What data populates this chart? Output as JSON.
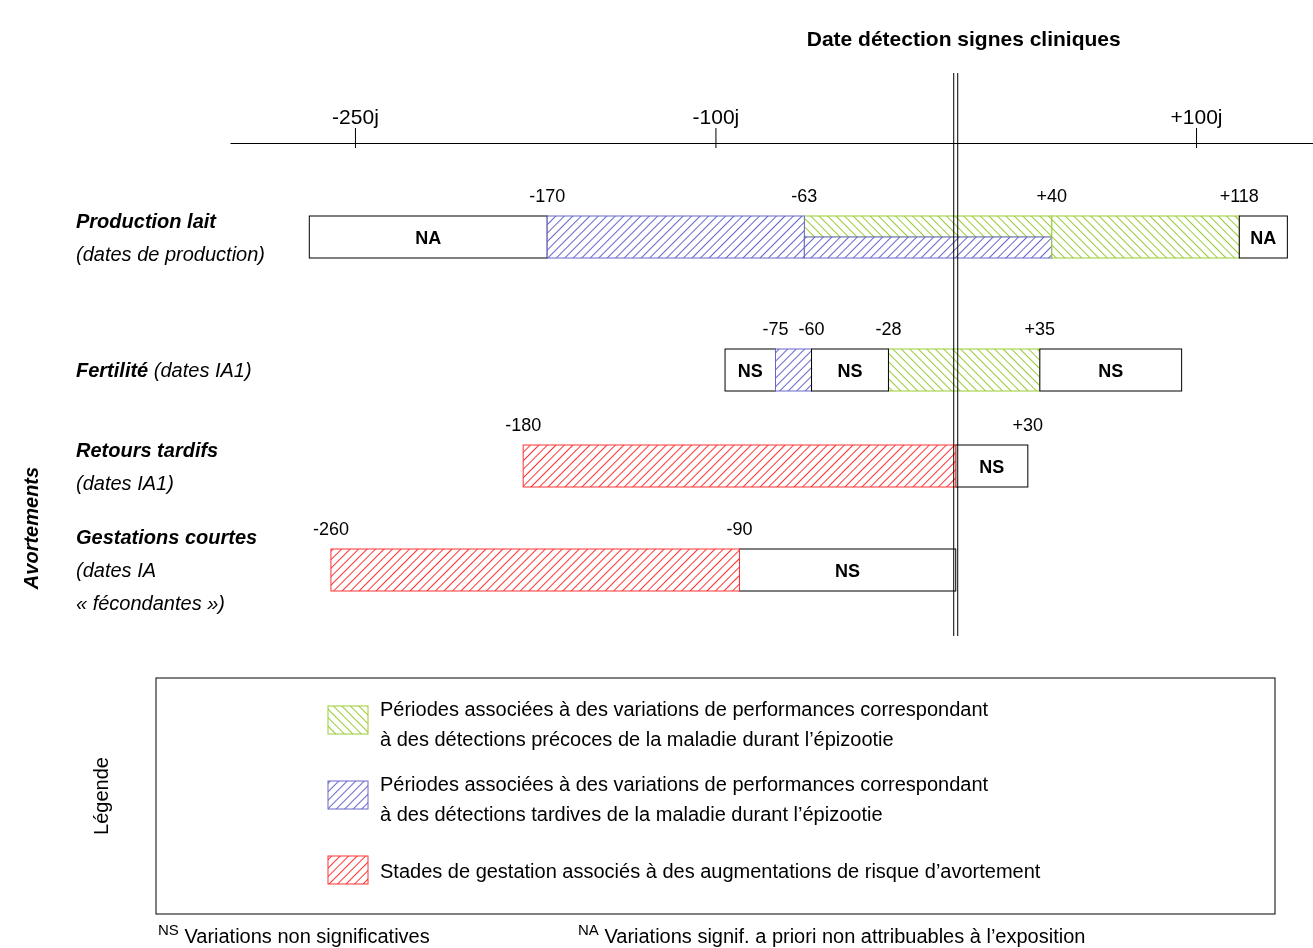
{
  "chart_data": {
    "type": "bar",
    "orientation": "horizontal",
    "categories": [
      "Production lait (dates de production)",
      "Fertilité (dates IA1)",
      "Retours tardifs (dates IA1)",
      "Gestations courtes (dates IA « fécondantes »)"
    ],
    "xlim": [
      -302,
      152
    ],
    "xticks": [
      {
        "value": -250,
        "label": "-250j"
      },
      {
        "value": -100,
        "label": "-100j"
      },
      {
        "value": 100,
        "label": "+100j"
      }
    ],
    "series": [
      {
        "color": "#ffffff",
        "base": [
          -269,
          -96,
          null,
          null
        ],
        "values": [
          99,
          21,
          null,
          null
        ],
        "value_labels": [
          "NA",
          "NS",
          null,
          null
        ]
      },
      {
        "name": "Périodes associées à des variations de performances correspondant à des détections précoces de la maladie durant l’épizootie",
        "color": "#99cc33",
        "base": [
          -63,
          -28,
          null,
          null
        ],
        "values": [
          103,
          63,
          null,
          null
        ]
      },
      {
        "name": "Périodes associées à des variations de performances correspondant à des détections tardives de la maladie durant l’épizootie",
        "color": "#6666cc",
        "base": [
          -170,
          -75,
          null,
          null
        ],
        "values": [
          107,
          15,
          null,
          null
        ]
      },
      {
        "color": "#6666cc",
        "base": [
          -63,
          null,
          null,
          null
        ],
        "values": [
          103,
          null,
          null,
          null
        ]
      },
      {
        "color": "#ffffff",
        "base": [
          null,
          -60,
          null,
          null
        ],
        "values": [
          null,
          32,
          null,
          null
        ],
        "value_labels": [
          null,
          "NS",
          null,
          null
        ]
      },
      {
        "color": "#99cc33",
        "base": [
          40,
          null,
          null,
          null
        ],
        "values": [
          78,
          null,
          null,
          null
        ]
      },
      {
        "color": "#ffffff",
        "base": [
          118,
          35,
          0,
          -90
        ],
        "values": [
          20,
          59,
          30,
          90
        ],
        "value_labels": [
          "NA",
          "NS",
          "NS",
          "NS"
        ]
      },
      {
        "name": "Stades de gestation associés à des augmentations de risque d’avortement",
        "color": "#ff3333",
        "base": [
          null,
          null,
          -180,
          -260
        ],
        "values": [
          null,
          null,
          180,
          170
        ]
      }
    ],
    "ref_lines": [
      {
        "axis": "x",
        "value": 0,
        "label": "Date détection signes cliniques"
      }
    ],
    "legend": "bottom",
    "legend_title": "Légende",
    "annotations": [
      "Avortements",
      "$^{NS}$ Variations non significatives",
      "$^{NA}$ Variations signif. a priori non attribuables à l’exposition",
      {
        "text": "-170",
        "x": -170,
        "y": "Production lait (dates de production)"
      },
      {
        "text": "-63",
        "x": -63,
        "y": "Production lait (dates de production)"
      },
      {
        "text": "+40",
        "x": 40,
        "y": "Production lait (dates de production)"
      },
      {
        "text": "+118",
        "x": 118,
        "y": "Production lait (dates de production)"
      },
      {
        "text": "-75",
        "x": -75,
        "y": "Fertilité (dates IA1)"
      },
      {
        "text": "-60",
        "x": -60,
        "y": "Fertilité (dates IA1)"
      },
      {
        "text": "-28",
        "x": -28,
        "y": "Fertilité (dates IA1)"
      },
      {
        "text": "+35",
        "x": 35,
        "y": "Fertilité (dates IA1)"
      },
      {
        "text": "-180",
        "x": -180,
        "y": "Retours tardifs (dates IA1)"
      },
      {
        "text": "+30",
        "x": 30,
        "y": "Retours tardifs (dates IA1)"
      },
      {
        "text": "-260",
        "x": -260,
        "y": "Gestations courtes (dates IA « fécondantes »)"
      },
      {
        "text": "-90",
        "x": -90,
        "y": "Gestations courtes (dates IA « fécondantes »)"
      }
    ]
  }
}
